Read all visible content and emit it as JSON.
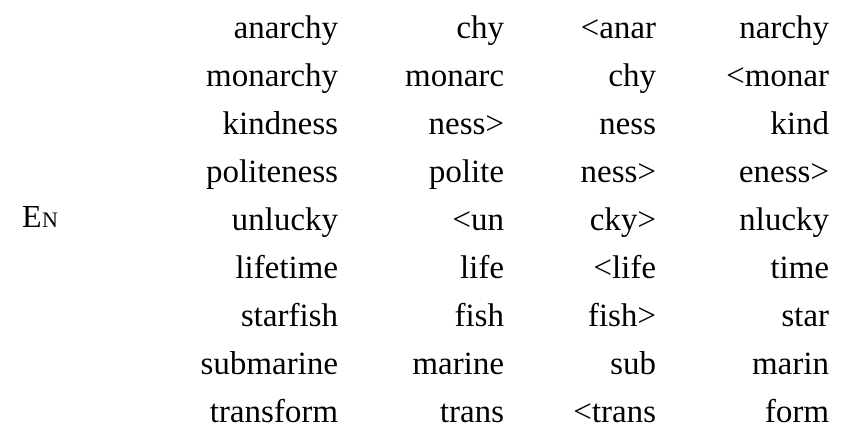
{
  "language_label": "En",
  "rows": [
    [
      "anarchy",
      "chy",
      "<anar",
      "narchy"
    ],
    [
      "monarchy",
      "monarc",
      "chy",
      "<monar"
    ],
    [
      "kindness",
      "ness>",
      "ness",
      "kind"
    ],
    [
      "politeness",
      "polite",
      "ness>",
      "eness>"
    ],
    [
      "unlucky",
      "<un",
      "cky>",
      "nlucky"
    ],
    [
      "lifetime",
      "life",
      "<life",
      "time"
    ],
    [
      "starfish",
      "fish",
      "fish>",
      "star"
    ],
    [
      "submarine",
      "marine",
      "sub",
      "marin"
    ],
    [
      "transform",
      "trans",
      "<trans",
      "form"
    ]
  ]
}
